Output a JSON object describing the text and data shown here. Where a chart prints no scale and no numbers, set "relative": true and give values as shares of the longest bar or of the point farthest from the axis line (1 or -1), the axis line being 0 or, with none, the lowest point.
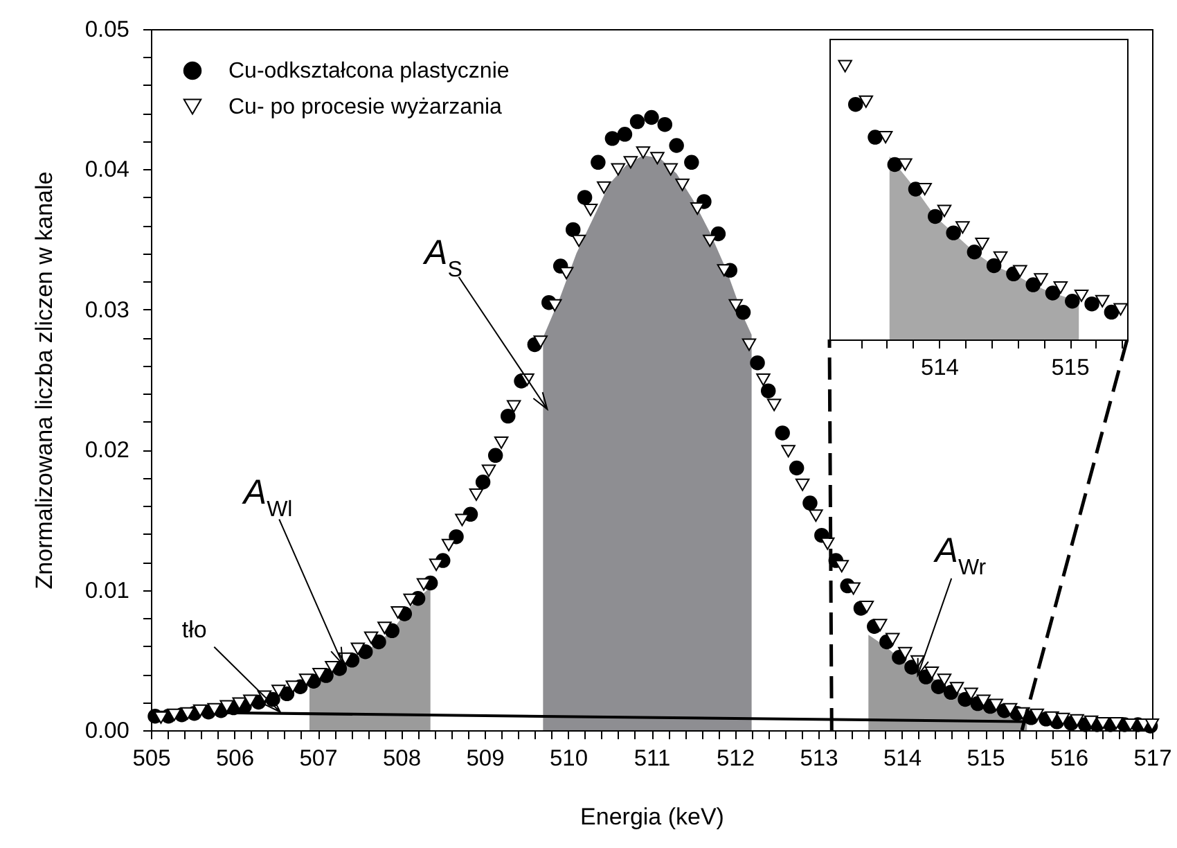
{
  "chart_data": [
    {
      "type": "scatter",
      "xlabel": "Energia  (keV)",
      "ylabel": "Znormalizowana liczba zliczen w kanale",
      "xlim": [
        505,
        517
      ],
      "ylim": [
        0,
        0.05
      ],
      "xticks": [
        505,
        {
          "value": 505.2,
          "label": null
        },
        {
          "value": 505.4,
          "label": null
        },
        {
          "value": 505.6,
          "label": null
        },
        {
          "value": 505.8,
          "label": null
        },
        506,
        {
          "value": 506.2,
          "label": null
        },
        {
          "value": 506.4,
          "label": null
        },
        {
          "value": 506.6,
          "label": null
        },
        {
          "value": 506.8,
          "label": null
        },
        507,
        {
          "value": 507.2,
          "label": null
        },
        {
          "value": 507.4,
          "label": null
        },
        {
          "value": 507.6,
          "label": null
        },
        {
          "value": 507.8,
          "label": null
        },
        508,
        {
          "value": 508.2,
          "label": null
        },
        {
          "value": 508.4,
          "label": null
        },
        {
          "value": 508.6,
          "label": null
        },
        {
          "value": 508.8,
          "label": null
        },
        509,
        {
          "value": 509.2,
          "label": null
        },
        {
          "value": 509.4,
          "label": null
        },
        {
          "value": 509.6,
          "label": null
        },
        {
          "value": 509.8,
          "label": null
        },
        510,
        {
          "value": 510.2,
          "label": null
        },
        {
          "value": 510.4,
          "label": null
        },
        {
          "value": 510.6,
          "label": null
        },
        {
          "value": 510.8,
          "label": null
        },
        511,
        {
          "value": 511.2,
          "label": null
        },
        {
          "value": 511.4,
          "label": null
        },
        {
          "value": 511.6,
          "label": null
        },
        {
          "value": 511.8,
          "label": null
        },
        512,
        {
          "value": 512.2,
          "label": null
        },
        {
          "value": 512.4,
          "label": null
        },
        {
          "value": 512.6,
          "label": null
        },
        {
          "value": 512.8,
          "label": null
        },
        513,
        {
          "value": 513.2,
          "label": null
        },
        {
          "value": 513.4,
          "label": null
        },
        {
          "value": 513.6,
          "label": null
        },
        {
          "value": 513.8,
          "label": null
        },
        514,
        {
          "value": 514.2,
          "label": null
        },
        {
          "value": 514.4,
          "label": null
        },
        {
          "value": 514.6,
          "label": null
        },
        {
          "value": 514.8,
          "label": null
        },
        515,
        {
          "value": 515.2,
          "label": null
        },
        {
          "value": 515.4,
          "label": null
        },
        {
          "value": 515.6,
          "label": null
        },
        {
          "value": 515.8,
          "label": null
        },
        516,
        {
          "value": 516.2,
          "label": null
        },
        {
          "value": 516.4,
          "label": null
        },
        {
          "value": 516.6,
          "label": null
        },
        {
          "value": 516.8,
          "label": null
        },
        517
      ],
      "yticks": [
        {
          "value": 0,
          "label": "0.00"
        },
        {
          "value": 0.002,
          "label": null
        },
        {
          "value": 0.004,
          "label": null
        },
        {
          "value": 0.006,
          "label": null
        },
        {
          "value": 0.008,
          "label": null
        },
        0.01,
        {
          "value": 0.012,
          "label": null
        },
        {
          "value": 0.014,
          "label": null
        },
        {
          "value": 0.016,
          "label": null
        },
        {
          "value": 0.018,
          "label": null
        },
        0.02,
        {
          "value": 0.022,
          "label": null
        },
        {
          "value": 0.024,
          "label": null
        },
        {
          "value": 0.026,
          "label": null
        },
        {
          "value": 0.028,
          "label": null
        },
        0.03,
        {
          "value": 0.032,
          "label": null
        },
        {
          "value": 0.034,
          "label": null
        },
        {
          "value": 0.036,
          "label": null
        },
        {
          "value": 0.038,
          "label": null
        },
        0.04,
        {
          "value": 0.042,
          "label": null
        },
        {
          "value": 0.044,
          "label": null
        },
        {
          "value": 0.046,
          "label": null
        },
        {
          "value": 0.048,
          "label": null
        },
        0.05
      ],
      "legend": "top left",
      "annotations": [
        {
          "text": "A$_{S}$",
          "x": 509.75,
          "y": 0.0229
        },
        {
          "text": "A$_{Wl}$",
          "x": 507.3,
          "y": 0.0047
        },
        {
          "text": "tło",
          "x": 506.55,
          "y": 0.0013
        },
        {
          "text": "A$_{Wr}$",
          "x": 514.19,
          "y": 0.0039
        }
      ],
      "series": [
        {
          "type": "area",
          "color": "#9b9b9b",
          "x": [
            506.9,
            507.1,
            507.26,
            507.41,
            507.57,
            507.73,
            507.89,
            508.04,
            508.2,
            508.35
          ],
          "values": [
            0.0034,
            0.0039,
            0.0044,
            0.005,
            0.0056,
            0.0063,
            0.0071,
            0.0083,
            0.0094,
            0.0102
          ]
        },
        {
          "type": "area",
          "color": "#8e8e92",
          "x": [
            509.7,
            509.9,
            510.1,
            510.3,
            510.5,
            510.7,
            510.9,
            511.1,
            511.3,
            511.5,
            511.7,
            511.9,
            512.1,
            512.2
          ],
          "values": [
            0.028,
            0.0308,
            0.034,
            0.0365,
            0.039,
            0.0403,
            0.041,
            0.0408,
            0.0397,
            0.0378,
            0.0355,
            0.0328,
            0.0295,
            0.0282
          ]
        },
        {
          "type": "area",
          "color": "#9b9b9b",
          "x": [
            513.6,
            513.8,
            514.0,
            514.2,
            514.4,
            514.6,
            514.8,
            515.0,
            515.2,
            515.5
          ],
          "values": [
            0.0068,
            0.006,
            0.005,
            0.0043,
            0.0036,
            0.0029,
            0.0024,
            0.0019,
            0.0014,
            0.0008
          ]
        },
        {
          "type": "line",
          "color": "#000000",
          "x": [
            505.05,
            515.6
          ],
          "values": [
            0.0013,
            0.0006
          ]
        },
        {
          "name": "Cu-odkształcona plastycznie",
          "color": "#000000",
          "marker": "circle",
          "x": [
            505.05,
            505.21,
            505.37,
            505.52,
            505.69,
            505.84,
            505.99,
            506.12,
            506.29,
            506.46,
            506.63,
            506.79,
            506.95,
            507.1,
            507.26,
            507.41,
            507.57,
            507.73,
            507.89,
            508.04,
            508.2,
            508.35,
            508.5,
            508.66,
            508.83,
            508.98,
            509.13,
            509.28,
            509.44,
            509.6,
            509.77,
            509.91,
            510.06,
            510.2,
            510.36,
            510.53,
            510.68,
            510.83,
            511.0,
            511.16,
            511.3,
            511.48,
            511.63,
            511.8,
            511.94,
            512.1,
            512.27,
            512.4,
            512.57,
            512.74,
            512.9,
            513.04,
            513.21,
            513.35,
            513.51,
            513.67,
            513.82,
            513.97,
            514.12,
            514.29,
            514.44,
            514.59,
            514.76,
            514.91,
            515.06,
            515.23,
            515.38,
            515.55,
            515.73,
            515.86,
            516.03,
            516.2,
            516.34,
            516.5,
            516.67,
            516.83,
            516.98
          ],
          "values": [
            0.001,
            0.001,
            0.0011,
            0.0012,
            0.0013,
            0.0014,
            0.0016,
            0.0017,
            0.002,
            0.0022,
            0.0026,
            0.0031,
            0.0035,
            0.0039,
            0.0044,
            0.005,
            0.0056,
            0.0063,
            0.0071,
            0.0083,
            0.0094,
            0.0105,
            0.0121,
            0.0138,
            0.0154,
            0.0177,
            0.0196,
            0.0224,
            0.0249,
            0.0275,
            0.0305,
            0.0331,
            0.0357,
            0.038,
            0.0405,
            0.0422,
            0.0425,
            0.0434,
            0.0437,
            0.0432,
            0.0417,
            0.0405,
            0.0377,
            0.0354,
            0.0328,
            0.0298,
            0.0262,
            0.0242,
            0.0212,
            0.0187,
            0.0162,
            0.0139,
            0.0121,
            0.0103,
            0.0087,
            0.0074,
            0.0063,
            0.0052,
            0.0045,
            0.0038,
            0.0031,
            0.0027,
            0.0022,
            0.0019,
            0.0017,
            0.0014,
            0.0012,
            0.0009,
            0.0008,
            0.0006,
            0.0005,
            0.0004,
            0.0004,
            0.0004,
            0.0004,
            0.0004,
            0.0003
          ]
        },
        {
          "name": "Cu- po procesie wyżarzania",
          "color": "#000000",
          "marker": "triangle",
          "x": [
            505.12,
            505.28,
            505.44,
            505.59,
            505.76,
            505.91,
            506.06,
            506.19,
            506.36,
            506.53,
            506.7,
            506.86,
            507.02,
            507.17,
            507.33,
            507.48,
            507.64,
            507.8,
            507.96,
            508.11,
            508.27,
            508.42,
            508.57,
            508.73,
            508.9,
            509.05,
            509.2,
            509.35,
            509.51,
            509.67,
            509.84,
            509.98,
            510.13,
            510.27,
            510.43,
            510.6,
            510.75,
            510.9,
            511.07,
            511.23,
            511.37,
            511.55,
            511.7,
            511.87,
            512.01,
            512.17,
            512.34,
            512.47,
            512.64,
            512.81,
            512.97,
            513.11,
            513.28,
            513.42,
            513.58,
            513.74,
            513.89,
            514.04,
            514.19,
            514.36,
            514.51,
            514.66,
            514.83,
            514.98,
            515.13,
            515.3,
            515.45,
            515.62,
            515.8,
            515.93,
            516.1,
            516.27,
            516.41,
            516.57,
            516.74,
            516.9,
            517
          ],
          "values": [
            0.0009,
            0.0011,
            0.0012,
            0.0014,
            0.0015,
            0.0017,
            0.0019,
            0.0021,
            0.0024,
            0.0028,
            0.0031,
            0.0036,
            0.004,
            0.0045,
            0.0051,
            0.0058,
            0.0066,
            0.0073,
            0.0084,
            0.0093,
            0.0104,
            0.0118,
            0.0132,
            0.015,
            0.0168,
            0.0185,
            0.0205,
            0.0231,
            0.025,
            0.0277,
            0.0303,
            0.0326,
            0.0349,
            0.0371,
            0.0387,
            0.04,
            0.0405,
            0.0412,
            0.0408,
            0.04,
            0.0389,
            0.0372,
            0.0349,
            0.0328,
            0.0303,
            0.0275,
            0.025,
            0.0232,
            0.0199,
            0.0175,
            0.0153,
            0.0133,
            0.0117,
            0.0101,
            0.0088,
            0.0075,
            0.0065,
            0.0055,
            0.0049,
            0.0041,
            0.0036,
            0.003,
            0.0026,
            0.0021,
            0.0018,
            0.0015,
            0.0012,
            0.0011,
            0.0009,
            0.0008,
            0.0007,
            0.0006,
            0.0005,
            0.0005,
            0.0004,
            0.0004,
            0.0004
          ]
        }
      ]
    },
    {
      "type": "scatter",
      "relative": true,
      "tick_labels": "x",
      "xlim": [
        513.16,
        515.44
      ],
      "xticks": [
        {
          "value": 513.4,
          "label": null
        },
        {
          "value": 513.6,
          "label": null
        },
        {
          "value": 513.8,
          "label": null
        },
        514,
        {
          "value": 514.2,
          "label": null
        },
        {
          "value": 514.4,
          "label": null
        },
        {
          "value": 514.6,
          "label": null
        },
        {
          "value": 514.8,
          "label": null
        },
        515,
        {
          "value": 515.2,
          "label": null
        },
        {
          "value": 515.4,
          "label": null
        }
      ],
      "series": [
        {
          "type": "area",
          "color": "#a8a8a8",
          "x": [
            513.62,
            513.82,
            513.97,
            514.11,
            514.27,
            514.42,
            514.57,
            514.72,
            514.87,
            515.07
          ],
          "values": [
            0.67,
            0.55,
            0.45,
            0.39,
            0.32,
            0.27,
            0.24,
            0.2,
            0.17,
            0.14
          ]
        },
        {
          "color": "#000000",
          "marker": "circle",
          "x": [
            513.36,
            513.51,
            513.66,
            513.82,
            513.97,
            514.11,
            514.27,
            514.42,
            514.57,
            514.72,
            514.87,
            515.02,
            515.17,
            515.32
          ],
          "values": [
            0.86,
            0.74,
            0.64,
            0.55,
            0.45,
            0.39,
            0.32,
            0.27,
            0.24,
            0.2,
            0.17,
            0.14,
            0.13,
            0.1
          ]
        },
        {
          "color": "#000000",
          "marker": "triangle",
          "x": [
            513.28,
            513.44,
            513.59,
            513.74,
            513.89,
            514.04,
            514.18,
            514.33,
            514.47,
            514.62,
            514.78,
            514.93,
            515.09,
            515.25,
            515.39
          ],
          "values": [
            1,
            0.87,
            0.74,
            0.64,
            0.55,
            0.47,
            0.41,
            0.35,
            0.3,
            0.25,
            0.22,
            0.19,
            0.16,
            0.14,
            0.11
          ]
        }
      ]
    }
  ]
}
